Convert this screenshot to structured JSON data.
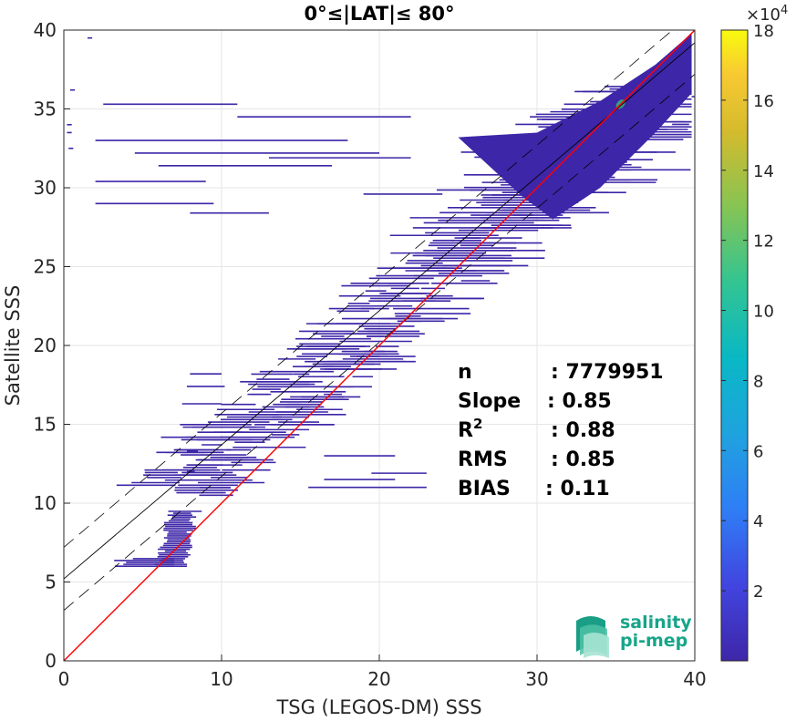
{
  "chart_data": {
    "type": "heatmap",
    "title": "0°≤|LAT|≤ 80°",
    "xlabel": "TSG (LEGOS-DM) SSS",
    "ylabel": "Satellite SSS",
    "xlim": [
      0,
      40
    ],
    "ylim": [
      0,
      40
    ],
    "xticks": [
      "0",
      "10",
      "20",
      "30",
      "40"
    ],
    "yticks": [
      "0",
      "5",
      "10",
      "15",
      "20",
      "25",
      "30",
      "35",
      "40"
    ],
    "grid": true,
    "colorbar": {
      "min": 0,
      "max": 180000,
      "ticks": [
        "2",
        "4",
        "6",
        "8",
        "10",
        "12",
        "14",
        "16",
        "18"
      ],
      "tick_values": [
        2,
        4,
        6,
        8,
        10,
        12,
        14,
        16,
        18
      ],
      "multiplier": "×10",
      "exponent": "4",
      "colormap": "parula"
    },
    "lines": {
      "identity": {
        "slope": 1,
        "intercept": 0,
        "color": "#ff0000"
      },
      "regression": {
        "slope": 0.85,
        "intercept": 5.2,
        "color": "#000000"
      },
      "regression_upper": {
        "slope": 0.85,
        "intercept": 7.2,
        "style": "dashed"
      },
      "regression_lower": {
        "slope": 0.85,
        "intercept": 3.2,
        "style": "dashed"
      }
    },
    "stats": [
      {
        "label": "n",
        "value": ": 7779951"
      },
      {
        "label": "Slope",
        "value": ": 0.85"
      },
      {
        "label": "R",
        "sup": "2",
        "value": ": 0.88"
      },
      {
        "label": "RMS",
        "value": ": 0.85"
      },
      {
        "label": "BIAS",
        "value": ": 0.11"
      }
    ]
  },
  "logo": {
    "line1": "salinity",
    "line2": "pi-mep"
  },
  "colors": {
    "density": "#3e26a8",
    "hotspot": "#35b779",
    "identity": "#ff0000"
  }
}
